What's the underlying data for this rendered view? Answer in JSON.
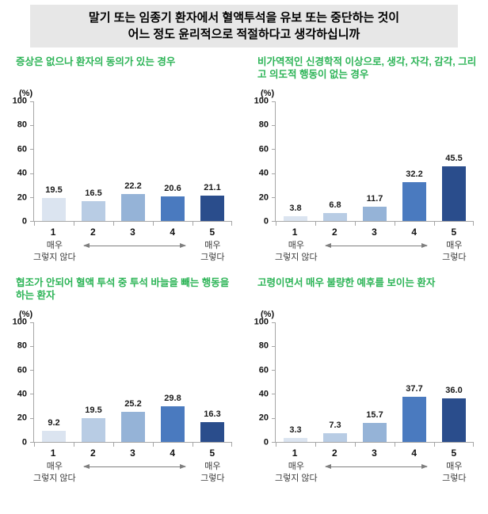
{
  "title": {
    "line1": "말기 또는 임종기 환자에서 혈액투석을 유보 또는 중단하는 것이",
    "line2": "어느 정도 윤리적으로 적절하다고 생각하십니까"
  },
  "colors": {
    "title_background": "#e7e7e7",
    "subtitle_green": "#2db457",
    "axis_gray": "#a6a6a6",
    "arrow_gray": "#7f7f7f",
    "bar_palette": [
      "#dbe4f0",
      "#b8cce4",
      "#95b3d7",
      "#4a7abf",
      "#2a4d8c"
    ]
  },
  "chart_data": [
    {
      "type": "bar",
      "title": "증상은 없으나 환자의 동의가 있는 경우",
      "categories": [
        "1",
        "2",
        "3",
        "4",
        "5"
      ],
      "values": [
        19.5,
        16.5,
        22.2,
        20.6,
        21.1
      ],
      "ylabel": "(%)",
      "ylim": [
        0,
        100
      ],
      "y_ticks": [
        0,
        20,
        40,
        60,
        80,
        100
      ],
      "grid": false,
      "legend": false,
      "anchor_left": [
        "매우",
        "그렇지 않다"
      ],
      "anchor_right": [
        "매우",
        "그렇다"
      ]
    },
    {
      "type": "bar",
      "title": "비가역적인 신경학적 이상으로, 생각, 자각, 감각, 그리고 의도적 행동이 없는 경우",
      "categories": [
        "1",
        "2",
        "3",
        "4",
        "5"
      ],
      "values": [
        3.8,
        6.8,
        11.7,
        32.2,
        45.5
      ],
      "ylabel": "(%)",
      "ylim": [
        0,
        100
      ],
      "y_ticks": [
        0,
        20,
        40,
        60,
        80,
        100
      ],
      "grid": false,
      "legend": false,
      "anchor_left": [
        "매우",
        "그렇지 않다"
      ],
      "anchor_right": [
        "매우",
        "그렇다"
      ]
    },
    {
      "type": "bar",
      "title": "협조가 안되어 혈액 투석 중 투석 바늘을 빼는 행동을 하는 환자",
      "categories": [
        "1",
        "2",
        "3",
        "4",
        "5"
      ],
      "values": [
        9.2,
        19.5,
        25.2,
        29.8,
        16.3
      ],
      "ylabel": "(%)",
      "ylim": [
        0,
        100
      ],
      "y_ticks": [
        0,
        20,
        40,
        60,
        80,
        100
      ],
      "grid": false,
      "legend": false,
      "anchor_left": [
        "매우",
        "그렇지 않다"
      ],
      "anchor_right": [
        "매우",
        "그렇다"
      ]
    },
    {
      "type": "bar",
      "title": "고령이면서 매우 불량한 예후를 보이는 환자",
      "categories": [
        "1",
        "2",
        "3",
        "4",
        "5"
      ],
      "values": [
        3.3,
        7.3,
        15.7,
        37.7,
        36.0
      ],
      "ylabel": "(%)",
      "ylim": [
        0,
        100
      ],
      "y_ticks": [
        0,
        20,
        40,
        60,
        80,
        100
      ],
      "grid": false,
      "legend": false,
      "anchor_left": [
        "매우",
        "그렇지 않다"
      ],
      "anchor_right": [
        "매우",
        "그렇다"
      ]
    }
  ]
}
